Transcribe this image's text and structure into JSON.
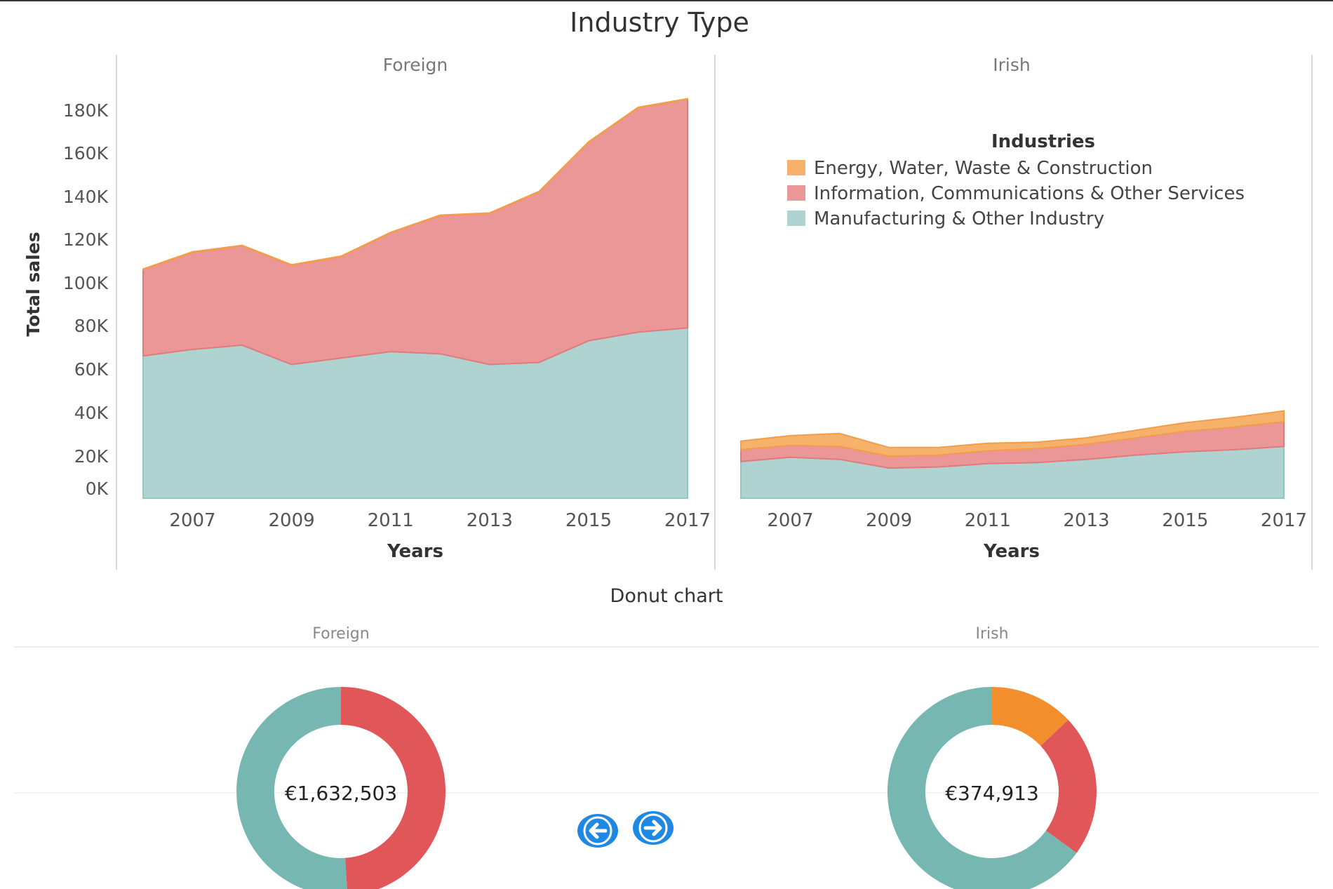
{
  "dashboard": {
    "area_title": "Industry Type",
    "donut_title": "Donut chart"
  },
  "colors": {
    "energy": "#f6b26b",
    "info": "#eb9797",
    "manufacturing": "#aed3d0",
    "donut_energy": "#f28e2b",
    "donut_info": "#e15759",
    "donut_manufacturing": "#76b7b2",
    "nav_button": "#1e88e5"
  },
  "chart_data": [
    {
      "type": "area",
      "stacked": true,
      "title": "Industry Type",
      "panels": [
        "Foreign",
        "Irish"
      ],
      "xlabel": "Years",
      "ylabel": "Total sales",
      "x": [
        2006,
        2007,
        2008,
        2009,
        2010,
        2011,
        2012,
        2013,
        2014,
        2015,
        2016,
        2017
      ],
      "xticks": [
        "2007",
        "2009",
        "2011",
        "2013",
        "2015",
        "2017"
      ],
      "yticks": [
        "0K",
        "20K",
        "40K",
        "60K",
        "80K",
        "100K",
        "120K",
        "140K",
        "160K",
        "180K"
      ],
      "ylim": [
        0,
        190000
      ],
      "legend_title": "Industries",
      "legend_position": "top-right",
      "series_names": [
        "Energy, Water, Waste & Construction",
        "Information, Communications & Other Services",
        "Manufacturing & Other Industry"
      ],
      "panel_series": [
        {
          "panel": "Foreign",
          "series": [
            {
              "name": "Manufacturing & Other Industry",
              "values": [
                66000,
                69000,
                71000,
                62000,
                65000,
                68000,
                67000,
                62000,
                63000,
                73000,
                77000,
                79000
              ]
            },
            {
              "name": "Information, Communications & Other Services",
              "values": [
                40000,
                45000,
                46000,
                46000,
                47000,
                55000,
                64000,
                70000,
                79000,
                92000,
                104000,
                106000
              ]
            },
            {
              "name": "Energy, Water, Waste & Construction",
              "values": [
                300,
                300,
                300,
                300,
                300,
                300,
                300,
                300,
                300,
                300,
                300,
                300
              ]
            }
          ]
        },
        {
          "panel": "Irish",
          "series": [
            {
              "name": "Manufacturing & Other Industry",
              "values": [
                17000,
                19000,
                18000,
                14000,
                14500,
                16000,
                16500,
                18000,
                20000,
                21500,
                22500,
                24000
              ]
            },
            {
              "name": "Information, Communications & Other Services",
              "values": [
                5500,
                5500,
                6000,
                5500,
                5500,
                6000,
                6500,
                7000,
                8000,
                9500,
                10500,
                11500
              ]
            },
            {
              "name": "Energy, Water, Waste & Construction",
              "values": [
                4000,
                4500,
                6000,
                4000,
                3500,
                3500,
                3000,
                3000,
                3500,
                4000,
                4500,
                5000
              ]
            }
          ]
        }
      ]
    },
    {
      "type": "pie",
      "donut": true,
      "title": "Donut chart",
      "panels": [
        {
          "label": "Foreign",
          "total_label": "€1,632,503",
          "slices": [
            {
              "name": "Information, Communications & Other Services",
              "value": 0.49
            },
            {
              "name": "Manufacturing & Other Industry",
              "value": 0.51
            }
          ]
        },
        {
          "label": "Irish",
          "total_label": "€374,913",
          "slices": [
            {
              "name": "Energy, Water, Waste & Construction",
              "value": 0.13
            },
            {
              "name": "Information, Communications & Other Services",
              "value": 0.22
            },
            {
              "name": "Manufacturing & Other Industry",
              "value": 0.65
            }
          ]
        }
      ]
    }
  ],
  "nav": {
    "prev_icon": "arrow-left-icon",
    "next_icon": "arrow-right-icon"
  }
}
